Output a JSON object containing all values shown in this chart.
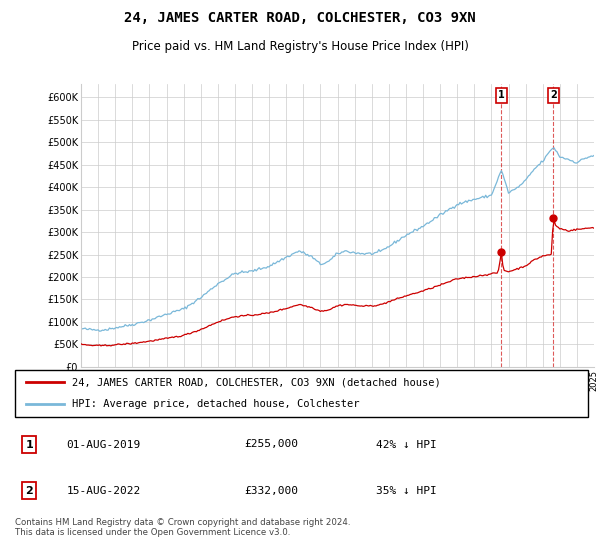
{
  "title": "24, JAMES CARTER ROAD, COLCHESTER, CO3 9XN",
  "subtitle": "Price paid vs. HM Land Registry's House Price Index (HPI)",
  "hpi_color": "#7ab8d9",
  "price_color": "#cc0000",
  "background_color": "#ffffff",
  "grid_color": "#cccccc",
  "ylim": [
    0,
    630000
  ],
  "yticks": [
    0,
    50000,
    100000,
    150000,
    200000,
    250000,
    300000,
    350000,
    400000,
    450000,
    500000,
    550000,
    600000
  ],
  "ytick_labels": [
    "£0",
    "£50K",
    "£100K",
    "£150K",
    "£200K",
    "£250K",
    "£300K",
    "£350K",
    "£400K",
    "£450K",
    "£500K",
    "£550K",
    "£600K"
  ],
  "legend_label_price": "24, JAMES CARTER ROAD, COLCHESTER, CO3 9XN (detached house)",
  "legend_label_hpi": "HPI: Average price, detached house, Colchester",
  "transaction1_date": "01-AUG-2019",
  "transaction1_price": "£255,000",
  "transaction1_hpi": "42% ↓ HPI",
  "transaction2_date": "15-AUG-2022",
  "transaction2_price": "£332,000",
  "transaction2_hpi": "35% ↓ HPI",
  "footnote": "Contains HM Land Registry data © Crown copyright and database right 2024.\nThis data is licensed under the Open Government Licence v3.0.",
  "vline1_x": 2019.583,
  "vline2_x": 2022.625,
  "marker1_x": 2019.583,
  "marker1_y": 255000,
  "marker2_x": 2022.625,
  "marker2_y": 332000,
  "x_min": 1995,
  "x_max": 2025
}
